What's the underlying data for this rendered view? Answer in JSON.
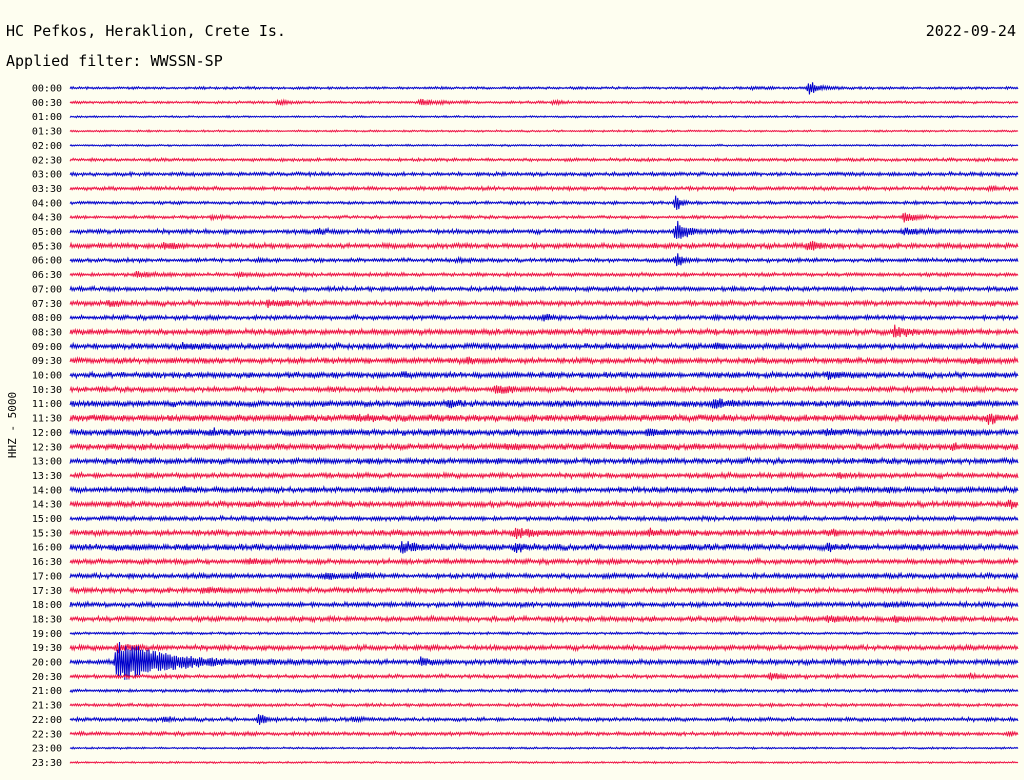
{
  "header": {
    "station": "HC Pefkos, Heraklion, Crete Is.",
    "date": "2022-09-24",
    "filter": "Applied filter: WWSSN-SP"
  },
  "colors": {
    "background": "#fefef0",
    "trace_even": "#0000cc",
    "trace_odd": "#ee1144"
  },
  "chart_data": {
    "type": "line",
    "subtype": "helicorder",
    "ylabel": "HHZ - 5000",
    "rows": [
      "00:00",
      "00:30",
      "01:00",
      "01:30",
      "02:00",
      "02:30",
      "03:00",
      "03:30",
      "04:00",
      "04:30",
      "05:00",
      "05:30",
      "06:00",
      "06:30",
      "07:00",
      "07:30",
      "08:00",
      "08:30",
      "09:00",
      "09:30",
      "10:00",
      "10:30",
      "11:00",
      "11:30",
      "12:00",
      "12:30",
      "13:00",
      "13:30",
      "14:00",
      "14:30",
      "15:00",
      "15:30",
      "16:00",
      "16:30",
      "17:00",
      "17:30",
      "18:00",
      "18:30",
      "19:00",
      "19:30",
      "20:00",
      "20:30",
      "21:00",
      "21:30",
      "22:00",
      "22:30",
      "23:00",
      "23:30"
    ],
    "row_duration_min": 30,
    "series": [
      {
        "row": 0,
        "noise": 0.4,
        "events": [
          [
            0.78,
            1.9,
            0.01
          ],
          [
            0.72,
            0.3,
            0.008
          ]
        ]
      },
      {
        "row": 1,
        "noise": 0.4,
        "events": [
          [
            0.22,
            0.5,
            0.012
          ],
          [
            0.37,
            0.8,
            0.018
          ],
          [
            0.51,
            0.4,
            0.01
          ]
        ]
      },
      {
        "row": 2,
        "noise": 0.3,
        "events": []
      },
      {
        "row": 3,
        "noise": 0.3,
        "events": []
      },
      {
        "row": 4,
        "noise": 0.3,
        "events": []
      },
      {
        "row": 5,
        "noise": 0.5,
        "events": []
      },
      {
        "row": 6,
        "noise": 0.6,
        "events": []
      },
      {
        "row": 7,
        "noise": 0.6,
        "events": [
          [
            0.97,
            0.5,
            0.01
          ]
        ]
      },
      {
        "row": 8,
        "noise": 0.5,
        "events": [
          [
            0.64,
            2.4,
            0.004
          ]
        ]
      },
      {
        "row": 9,
        "noise": 0.5,
        "events": [
          [
            0.15,
            0.5,
            0.01
          ],
          [
            0.88,
            1.2,
            0.012
          ]
        ]
      },
      {
        "row": 10,
        "noise": 0.7,
        "events": [
          [
            0.64,
            3.0,
            0.01
          ],
          [
            0.26,
            0.6,
            0.01
          ],
          [
            0.88,
            0.9,
            0.012
          ]
        ]
      },
      {
        "row": 11,
        "noise": 0.8,
        "events": [
          [
            0.1,
            1.0,
            0.012
          ],
          [
            0.78,
            1.3,
            0.01
          ]
        ]
      },
      {
        "row": 12,
        "noise": 0.6,
        "events": [
          [
            0.2,
            0.4,
            0.008
          ],
          [
            0.41,
            0.6,
            0.006
          ],
          [
            0.64,
            2.0,
            0.006
          ]
        ]
      },
      {
        "row": 13,
        "noise": 0.6,
        "events": [
          [
            0.07,
            0.8,
            0.015
          ],
          [
            0.18,
            0.4,
            0.008
          ]
        ]
      },
      {
        "row": 14,
        "noise": 0.7,
        "events": []
      },
      {
        "row": 15,
        "noise": 0.8,
        "events": [
          [
            0.04,
            0.6,
            0.015
          ],
          [
            0.21,
            0.8,
            0.012
          ]
        ]
      },
      {
        "row": 16,
        "noise": 0.7,
        "events": [
          [
            0.5,
            0.9,
            0.008
          ],
          [
            0.68,
            0.4,
            0.006
          ]
        ]
      },
      {
        "row": 17,
        "noise": 0.9,
        "events": [
          [
            0.87,
            1.2,
            0.015
          ]
        ]
      },
      {
        "row": 18,
        "noise": 0.9,
        "events": [
          [
            0.12,
            0.7,
            0.02
          ],
          [
            0.68,
            0.6,
            0.01
          ]
        ]
      },
      {
        "row": 19,
        "noise": 0.9,
        "events": [
          [
            0.42,
            0.7,
            0.01
          ],
          [
            0.95,
            0.5,
            0.008
          ]
        ]
      },
      {
        "row": 20,
        "noise": 0.9,
        "events": [
          [
            0.35,
            0.5,
            0.006
          ],
          [
            0.8,
            0.8,
            0.012
          ]
        ]
      },
      {
        "row": 21,
        "noise": 0.8,
        "events": [
          [
            0.45,
            1.4,
            0.012
          ]
        ]
      },
      {
        "row": 22,
        "noise": 1.0,
        "events": [
          [
            0.4,
            0.9,
            0.008
          ],
          [
            0.68,
            1.1,
            0.015
          ]
        ]
      },
      {
        "row": 23,
        "noise": 1.1,
        "events": [
          [
            0.97,
            1.2,
            0.008
          ],
          [
            0.3,
            0.5,
            0.02
          ]
        ]
      },
      {
        "row": 24,
        "noise": 1.0,
        "events": [
          [
            0.15,
            0.6,
            0.015
          ],
          [
            0.61,
            0.8,
            0.012
          ],
          [
            0.8,
            0.7,
            0.008
          ]
        ]
      },
      {
        "row": 25,
        "noise": 1.0,
        "events": [
          [
            0.46,
            0.6,
            0.015
          ],
          [
            0.57,
            0.5,
            0.015
          ],
          [
            0.93,
            0.5,
            0.01
          ]
        ]
      },
      {
        "row": 26,
        "noise": 0.9,
        "events": [
          [
            0.45,
            0.4,
            0.01
          ]
        ]
      },
      {
        "row": 27,
        "noise": 0.8,
        "events": [
          [
            0.81,
            0.5,
            0.008
          ]
        ]
      },
      {
        "row": 28,
        "noise": 0.9,
        "events": [
          [
            0.12,
            0.4,
            0.01
          ],
          [
            0.86,
            0.4,
            0.01
          ]
        ]
      },
      {
        "row": 29,
        "noise": 0.9,
        "events": [
          [
            0.99,
            1.1,
            0.006
          ],
          [
            0.85,
            0.4,
            0.008
          ]
        ]
      },
      {
        "row": 30,
        "noise": 0.7,
        "events": []
      },
      {
        "row": 31,
        "noise": 0.9,
        "events": [
          [
            0.47,
            1.1,
            0.025
          ],
          [
            0.61,
            0.8,
            0.015
          ],
          [
            0.8,
            0.6,
            0.012
          ]
        ]
      },
      {
        "row": 32,
        "noise": 1.0,
        "events": [
          [
            0.35,
            1.3,
            0.015
          ],
          [
            0.47,
            1.0,
            0.01
          ],
          [
            0.8,
            0.9,
            0.008
          ],
          [
            0.05,
            0.4,
            0.012
          ]
        ]
      },
      {
        "row": 33,
        "noise": 0.8,
        "events": [
          [
            0.19,
            0.6,
            0.008
          ]
        ]
      },
      {
        "row": 34,
        "noise": 0.8,
        "events": [
          [
            0.27,
            0.8,
            0.01
          ],
          [
            0.3,
            0.7,
            0.01
          ]
        ]
      },
      {
        "row": 35,
        "noise": 0.8,
        "events": [
          [
            0.14,
            0.6,
            0.015
          ]
        ]
      },
      {
        "row": 36,
        "noise": 0.8,
        "events": [
          [
            0.86,
            0.4,
            0.02
          ]
        ]
      },
      {
        "row": 37,
        "noise": 0.8,
        "events": [
          [
            0.8,
            0.6,
            0.02
          ],
          [
            0.87,
            0.8,
            0.006
          ]
        ]
      },
      {
        "row": 38,
        "noise": 0.4,
        "events": []
      },
      {
        "row": 39,
        "noise": 0.8,
        "events": [
          [
            0.05,
            1.0,
            0.015
          ]
        ]
      },
      {
        "row": 40,
        "noise": 0.8,
        "events": [
          [
            0.05,
            6.0,
            0.05
          ],
          [
            0.37,
            0.9,
            0.01
          ]
        ]
      },
      {
        "row": 41,
        "noise": 0.6,
        "events": [
          [
            0.74,
            1.0,
            0.01
          ],
          [
            0.95,
            0.5,
            0.006
          ]
        ]
      },
      {
        "row": 42,
        "noise": 0.5,
        "events": []
      },
      {
        "row": 43,
        "noise": 0.5,
        "events": []
      },
      {
        "row": 44,
        "noise": 0.6,
        "events": [
          [
            0.1,
            0.8,
            0.006
          ],
          [
            0.2,
            1.5,
            0.006
          ],
          [
            0.3,
            0.6,
            0.006
          ]
        ]
      },
      {
        "row": 45,
        "noise": 0.6,
        "events": [
          [
            0.99,
            0.6,
            0.006
          ]
        ]
      },
      {
        "row": 46,
        "noise": 0.3,
        "events": []
      },
      {
        "row": 47,
        "noise": 0.3,
        "events": []
      }
    ]
  }
}
